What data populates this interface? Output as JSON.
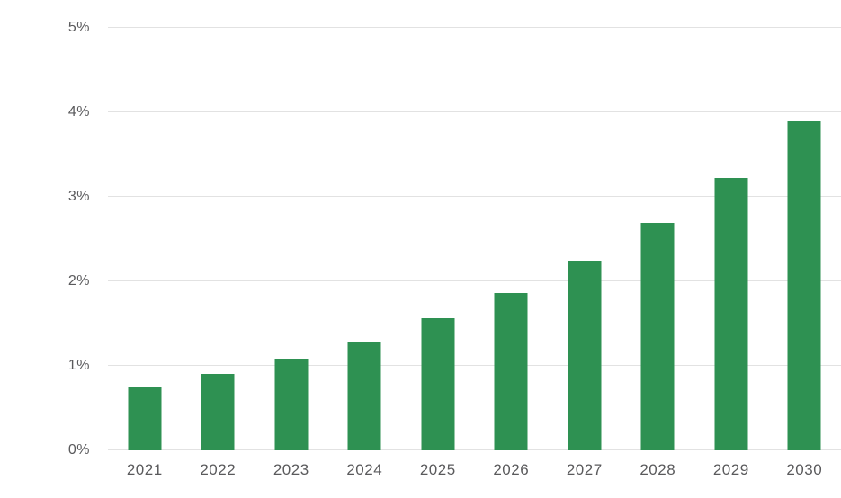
{
  "chart_data": {
    "type": "bar",
    "title": "",
    "xlabel": "",
    "ylabel": "",
    "categories": [
      "2021",
      "2022",
      "2023",
      "2024",
      "2025",
      "2026",
      "2027",
      "2028",
      "2029",
      "2030"
    ],
    "values": [
      0.74,
      0.9,
      1.08,
      1.29,
      1.56,
      1.86,
      2.24,
      2.69,
      3.22,
      3.89
    ],
    "ylim": [
      0,
      5
    ],
    "yticks": [
      {
        "value": 0,
        "label": "0%"
      },
      {
        "value": 1,
        "label": "1%"
      },
      {
        "value": 2,
        "label": "2%"
      },
      {
        "value": 3,
        "label": "3%"
      },
      {
        "value": 4,
        "label": "4%"
      },
      {
        "value": 5,
        "label": "5%"
      }
    ],
    "grid": true,
    "legend": "none",
    "colors": {
      "bar": "#2e9152",
      "gridline": "#e2e2e2",
      "tick_text": "#5a5a5c",
      "background": "#ffffff"
    }
  }
}
